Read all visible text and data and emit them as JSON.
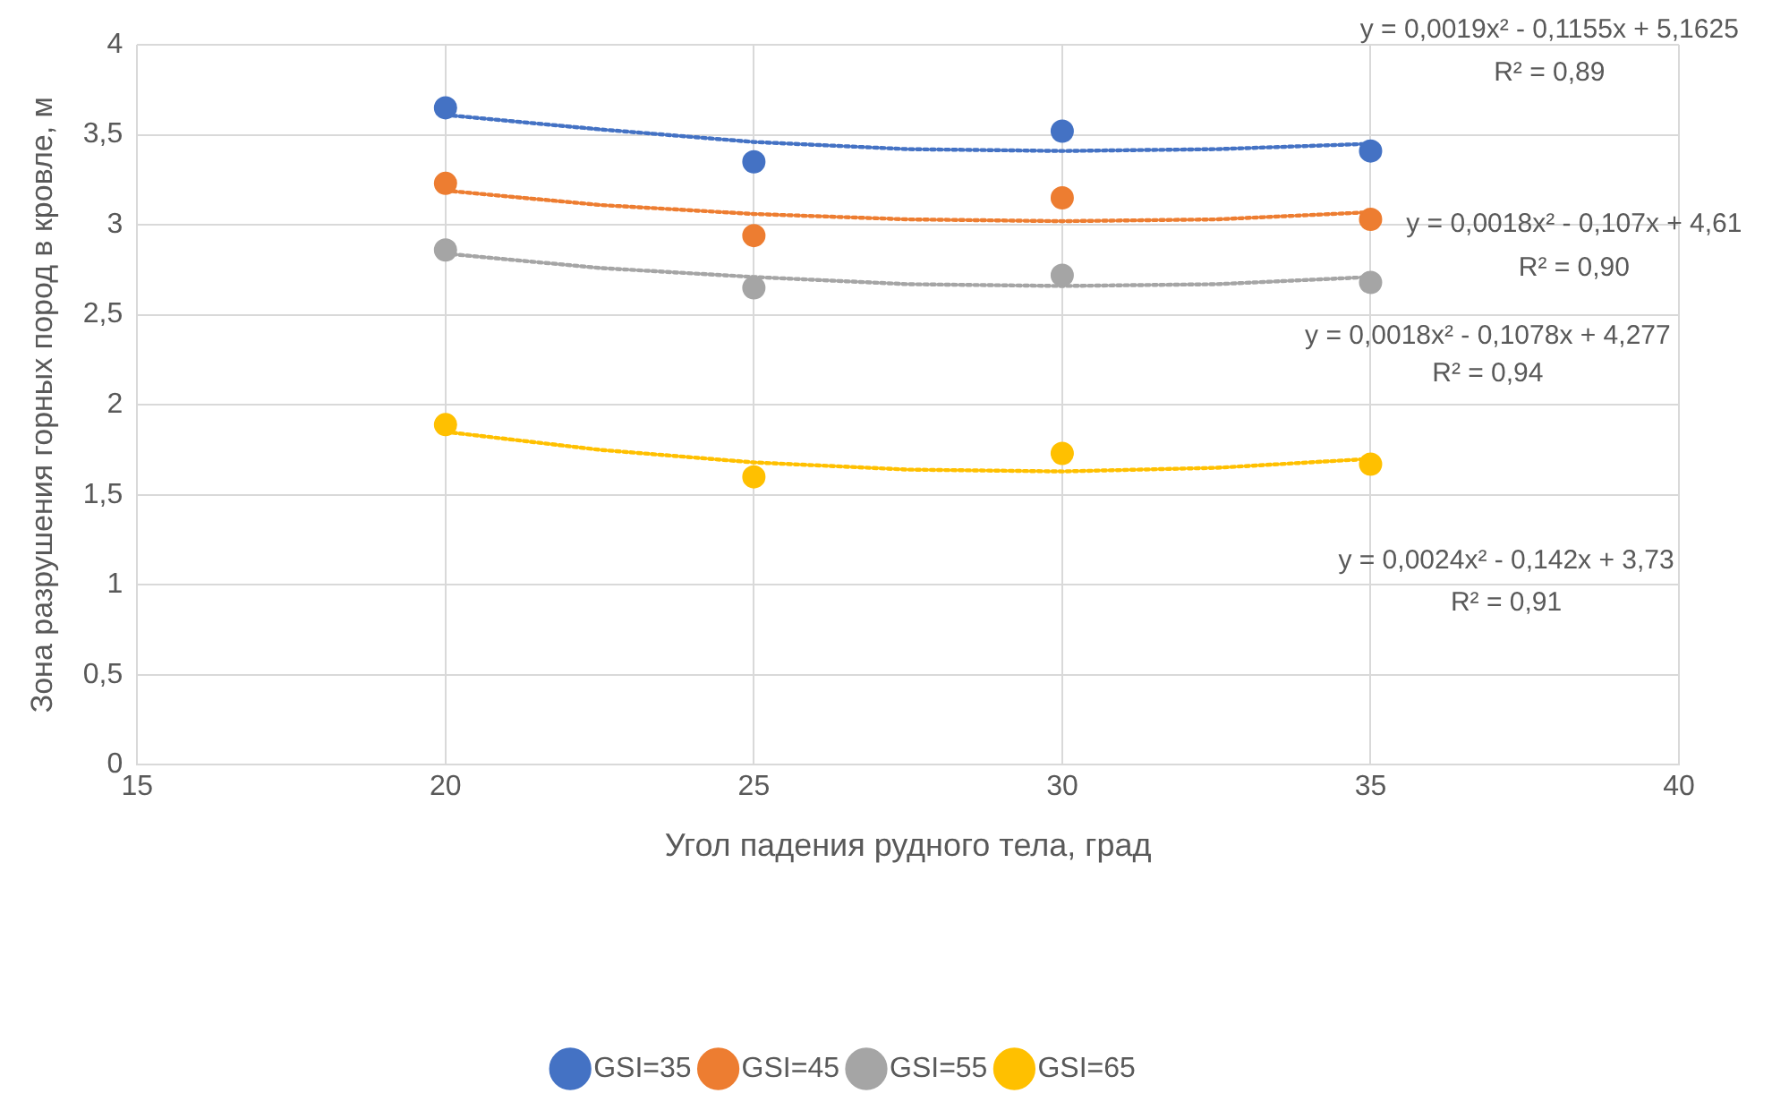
{
  "chart_data": {
    "type": "scatter",
    "xlabel": "Угол падения рудного тела, град",
    "ylabel": "Зона разрушения горных пород в кровле, м",
    "xlim": [
      15,
      40
    ],
    "xticks": [
      15,
      20,
      25,
      30,
      35,
      40
    ],
    "ylim": [
      0,
      4
    ],
    "yticks": [
      0,
      {
        "value": 0.5,
        "label": "0,5"
      },
      1,
      {
        "value": 1.5,
        "label": "1,5"
      },
      2,
      {
        "value": 2.5,
        "label": "2,5"
      },
      3,
      {
        "value": 3.5,
        "label": "3,5"
      },
      4
    ],
    "grid": true,
    "legend": "bottom",
    "marker": "circle",
    "series": [
      {
        "name": "GSI=35",
        "color": "#4472c4",
        "x": [
          20,
          25,
          30,
          35
        ],
        "values": [
          3.65,
          3.35,
          3.52,
          3.41
        ]
      },
      {
        "name": "GSI=45",
        "color": "#ed7d31",
        "x": [
          20,
          25,
          30,
          35
        ],
        "values": [
          3.23,
          2.94,
          3.15,
          3.03
        ]
      },
      {
        "name": "GSI=55",
        "color": "#a5a5a5",
        "x": [
          20,
          25,
          30,
          35
        ],
        "values": [
          2.86,
          2.65,
          2.72,
          2.68
        ]
      },
      {
        "name": "GSI=65",
        "color": "#ffc000",
        "x": [
          20,
          25,
          30,
          35
        ],
        "values": [
          1.89,
          1.6,
          1.73,
          1.67
        ]
      },
      {
        "type": "line",
        "color": "#4472c4",
        "line_style": "dotted",
        "marker": "none",
        "x": [
          20,
          22.5,
          25,
          27.5,
          30,
          32.5,
          35
        ],
        "values": [
          3.61,
          3.53,
          3.46,
          3.42,
          3.41,
          3.42,
          3.45
        ]
      },
      {
        "type": "line",
        "color": "#ed7d31",
        "line_style": "dotted",
        "marker": "none",
        "x": [
          20,
          22.5,
          25,
          27.5,
          30,
          32.5,
          35
        ],
        "values": [
          3.19,
          3.11,
          3.06,
          3.03,
          3.02,
          3.03,
          3.07
        ]
      },
      {
        "type": "line",
        "color": "#a5a5a5",
        "line_style": "dotted",
        "marker": "none",
        "x": [
          20,
          22.5,
          25,
          27.5,
          30,
          32.5,
          35
        ],
        "values": [
          2.84,
          2.76,
          2.71,
          2.67,
          2.66,
          2.67,
          2.71
        ]
      },
      {
        "type": "line",
        "color": "#ffc000",
        "line_style": "dotted",
        "marker": "none",
        "x": [
          20,
          22.5,
          25,
          27.5,
          30,
          32.5,
          35
        ],
        "values": [
          1.85,
          1.75,
          1.68,
          1.64,
          1.63,
          1.65,
          1.7
        ]
      }
    ],
    "annotations": [
      "y = 0,0019x² - 0,1155x + 5,1625",
      "R² = 0,89",
      "y = 0,0018x² - 0,107x + 4,61",
      "R² = 0,90",
      "y = 0,0018x² - 0,1078x + 4,277",
      "R² = 0,94",
      "y = 0,0024x² - 0,142x + 3,73",
      "R² = 0,91"
    ]
  }
}
